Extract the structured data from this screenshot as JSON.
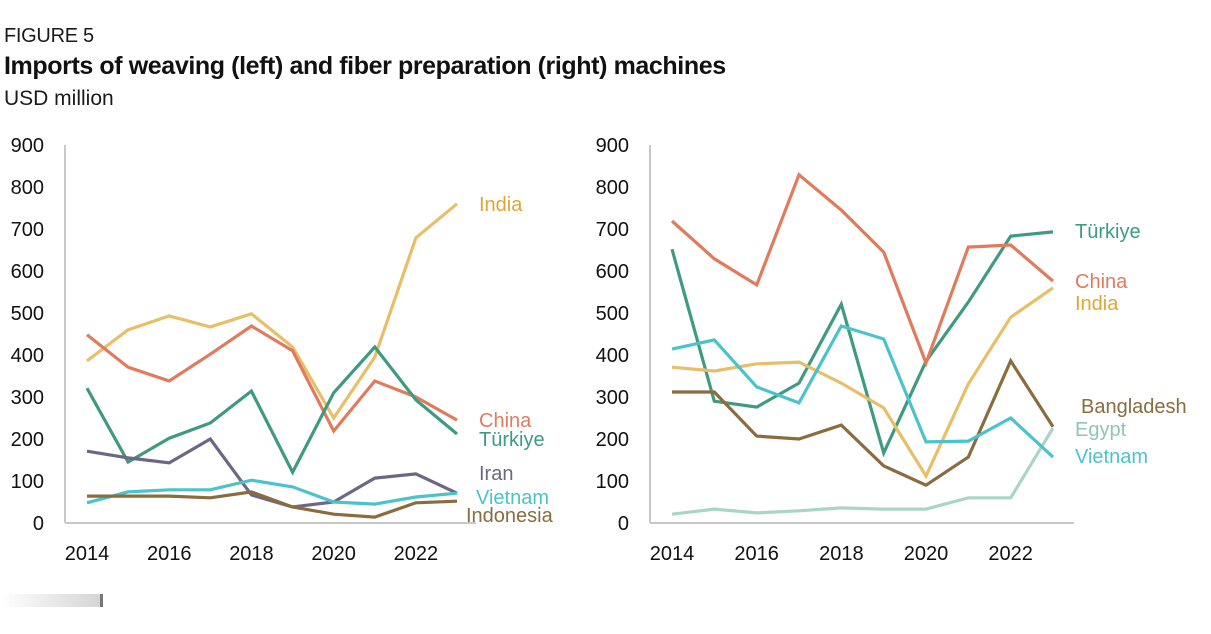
{
  "figure": {
    "label": "FIGURE 5",
    "title": "Imports of weaving (left) and fiber preparation (right) machines",
    "subtitle": "USD million"
  },
  "colors": {
    "India": "#E8BE68",
    "India_label": "#E0A535",
    "China": "#E07B5E",
    "Türkiye": "#3F9A80",
    "Iran": "#6D6785",
    "Vietnam": "#4CC3CB",
    "Indonesia": "#8A6C3E",
    "Bangladesh": "#8A6C3E",
    "Egypt": "#A9D5C9",
    "Egypt_label": "#8FC4B6",
    "axis": "#c8c8c8"
  },
  "chart_data": [
    {
      "type": "line",
      "title": "Weaving machines",
      "xlabel": "",
      "ylabel": "USD million",
      "ylim": [
        0,
        900
      ],
      "yticks": [
        "0",
        "100",
        "200",
        "300",
        "400",
        "500",
        "600",
        "700",
        "800",
        "900"
      ],
      "x": [
        2014,
        2015,
        2016,
        2017,
        2018,
        2019,
        2020,
        2021,
        2022,
        2023
      ],
      "xticks": [
        "2014",
        "2016",
        "2018",
        "2020",
        "2022"
      ],
      "grid": false,
      "legend": "direct labels at line ends (right)",
      "series": [
        {
          "name": "India",
          "values": [
            386,
            460,
            493,
            467,
            498,
            419,
            250,
            395,
            679,
            760
          ]
        },
        {
          "name": "China",
          "values": [
            448,
            371,
            338,
            402,
            469,
            410,
            219,
            338,
            300,
            245
          ]
        },
        {
          "name": "Türkiye",
          "values": [
            321,
            145,
            202,
            238,
            314,
            121,
            310,
            419,
            293,
            212
          ]
        },
        {
          "name": "Iran",
          "values": [
            171,
            155,
            143,
            200,
            67,
            38,
            50,
            107,
            117,
            71
          ]
        },
        {
          "name": "Vietnam",
          "values": [
            48,
            74,
            79,
            79,
            102,
            86,
            50,
            45,
            62,
            71
          ]
        },
        {
          "name": "Indonesia",
          "values": [
            64,
            64,
            64,
            60,
            74,
            38,
            21,
            14,
            48,
            52
          ]
        }
      ]
    },
    {
      "type": "line",
      "title": "Fiber preparation machines",
      "xlabel": "",
      "ylabel": "USD million",
      "ylim": [
        0,
        900
      ],
      "yticks": [
        "0",
        "100",
        "200",
        "300",
        "400",
        "500",
        "600",
        "700",
        "800",
        "900"
      ],
      "x": [
        2014,
        2015,
        2016,
        2017,
        2018,
        2019,
        2020,
        2021,
        2022,
        2023
      ],
      "xticks": [
        "2014",
        "2016",
        "2018",
        "2020",
        "2022"
      ],
      "grid": false,
      "legend": "direct labels at line ends (right)",
      "series": [
        {
          "name": "Türkiye",
          "values": [
            652,
            290,
            276,
            333,
            521,
            167,
            385,
            526,
            683,
            693
          ]
        },
        {
          "name": "China",
          "values": [
            719,
            629,
            567,
            829,
            745,
            645,
            381,
            657,
            662,
            576
          ]
        },
        {
          "name": "India",
          "values": [
            371,
            362,
            379,
            383,
            333,
            274,
            112,
            331,
            490,
            560
          ]
        },
        {
          "name": "Bangladesh",
          "values": [
            312,
            312,
            207,
            200,
            233,
            136,
            90,
            157,
            386,
            229
          ]
        },
        {
          "name": "Egypt",
          "values": [
            21,
            33,
            24,
            29,
            36,
            33,
            33,
            60,
            60,
            226
          ]
        },
        {
          "name": "Vietnam",
          "values": [
            414,
            436,
            324,
            286,
            469,
            438,
            193,
            195,
            250,
            157
          ]
        }
      ]
    }
  ],
  "labels": {
    "left": [
      {
        "series": "India",
        "text": "India"
      },
      {
        "series": "China",
        "text": "China"
      },
      {
        "series": "Türkiye",
        "text": "Türkiye"
      },
      {
        "series": "Iran",
        "text": "Iran"
      },
      {
        "series": "Vietnam",
        "text": "Vietnam"
      },
      {
        "series": "Indonesia",
        "text": "Indonesia"
      }
    ],
    "right": [
      {
        "series": "Türkiye",
        "text": "Türkiye"
      },
      {
        "series": "China",
        "text": "China"
      },
      {
        "series": "India",
        "text": "India"
      },
      {
        "series": "Bangladesh",
        "text": "Bangladesh"
      },
      {
        "series": "Egypt",
        "text": "Egypt"
      },
      {
        "series": "Vietnam",
        "text": "Vietnam"
      }
    ]
  }
}
